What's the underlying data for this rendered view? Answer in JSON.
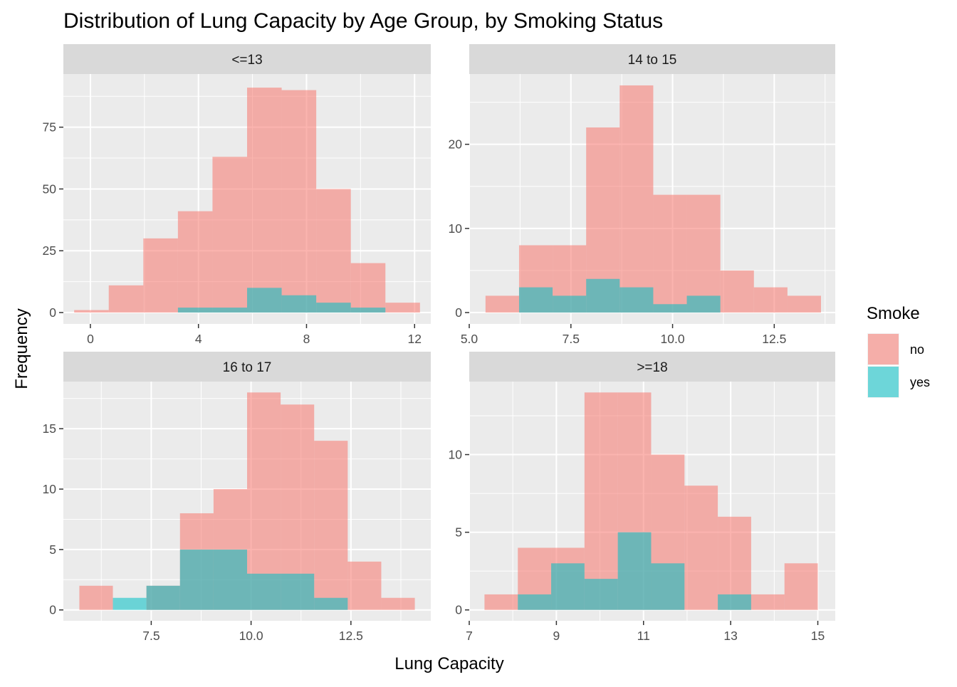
{
  "chart_data": {
    "type": "bar",
    "title": "Distribution of Lung Capacity by Age Group, by Smoking Status",
    "xlabel": "Lung Capacity",
    "ylabel": "Frequency",
    "legend": {
      "title": "Smoke",
      "placement": "right",
      "entries": [
        {
          "name": "no",
          "color": "#F8766D"
        },
        {
          "name": "yes",
          "color": "#00BFC4"
        }
      ]
    },
    "colors": {
      "panel_bg": "#EBEBEB",
      "strip_bg": "#D9D9D9",
      "grid": "#FFFFFF",
      "no": "#F8766D",
      "yes": "#00BFC4",
      "alpha": 0.55
    },
    "facets": [
      {
        "label": "<=13",
        "xlim": [
          -1.0,
          12.6
        ],
        "ylim": [
          -4.6,
          96.5
        ],
        "xticks": [
          0,
          4,
          8,
          12
        ],
        "xtick_labels": [
          "0",
          "4",
          "8",
          "12"
        ],
        "yticks": [
          0,
          25,
          50,
          75
        ],
        "ytick_labels": [
          "0",
          "25",
          "50",
          "75"
        ],
        "bin_edges": [
          -0.6,
          0.68,
          1.96,
          3.24,
          4.52,
          5.8,
          7.08,
          8.36,
          9.64,
          10.92,
          12.2
        ],
        "series": [
          {
            "name": "no",
            "values": [
              1,
              11,
              30,
              41,
              63,
              91,
              90,
              50,
              20,
              4
            ]
          },
          {
            "name": "yes",
            "values": [
              0,
              0,
              0,
              2,
              2,
              10,
              7,
              4,
              2,
              0
            ]
          }
        ]
      },
      {
        "label": "14 to 15",
        "xlim": [
          5.0,
          14.0
        ],
        "ylim": [
          -1.35,
          28.35
        ],
        "xticks": [
          5.0,
          7.5,
          10.0,
          12.5
        ],
        "xtick_labels": [
          "5.0",
          "7.5",
          "10.0",
          "12.5"
        ],
        "yticks": [
          0,
          10,
          20
        ],
        "ytick_labels": [
          "0",
          "10",
          "20"
        ],
        "bin_edges": [
          5.4,
          6.225,
          7.05,
          7.875,
          8.7,
          9.525,
          10.35,
          11.175,
          12.0,
          12.825,
          13.65
        ],
        "series": [
          {
            "name": "no",
            "values": [
              2,
              8,
              8,
              22,
              27,
              14,
              14,
              5,
              3,
              2
            ]
          },
          {
            "name": "yes",
            "values": [
              0,
              3,
              2,
              4,
              3,
              1,
              2,
              0,
              0,
              0
            ]
          }
        ]
      },
      {
        "label": "16 to 17",
        "xlim": [
          5.3,
          14.5
        ],
        "ylim": [
          -0.9,
          18.9
        ],
        "xticks": [
          7.5,
          10.0,
          12.5
        ],
        "xtick_labels": [
          "7.5",
          "10.0",
          "12.5"
        ],
        "yticks": [
          0,
          5,
          10,
          15
        ],
        "ytick_labels": [
          "0",
          "5",
          "10",
          "15"
        ],
        "bin_edges": [
          5.7,
          6.54,
          7.38,
          8.22,
          9.06,
          9.9,
          10.74,
          11.58,
          12.42,
          13.26,
          14.1
        ],
        "series": [
          {
            "name": "no",
            "values": [
              2,
              0,
              2,
              8,
              10,
              18,
              17,
              14,
              4,
              1
            ]
          },
          {
            "name": "yes",
            "values": [
              0,
              1,
              2,
              5,
              5,
              3,
              3,
              1,
              0,
              0
            ]
          }
        ]
      },
      {
        "label": ">=18",
        "xlim": [
          7.0,
          15.4
        ],
        "ylim": [
          -0.7,
          14.7
        ],
        "xticks": [
          7,
          9,
          11,
          13,
          15
        ],
        "xtick_labels": [
          "7",
          "9",
          "11",
          "13",
          "15"
        ],
        "yticks": [
          0,
          5,
          10
        ],
        "ytick_labels": [
          "0",
          "5",
          "10"
        ],
        "bin_edges": [
          7.35,
          8.115,
          8.88,
          9.645,
          10.41,
          11.175,
          11.94,
          12.705,
          13.47,
          14.235,
          15.0
        ],
        "series": [
          {
            "name": "no",
            "values": [
              1,
              4,
              4,
              14,
              14,
              10,
              8,
              6,
              1,
              3
            ]
          },
          {
            "name": "yes",
            "values": [
              0,
              1,
              3,
              2,
              5,
              3,
              0,
              1,
              0,
              0
            ]
          }
        ]
      }
    ]
  }
}
